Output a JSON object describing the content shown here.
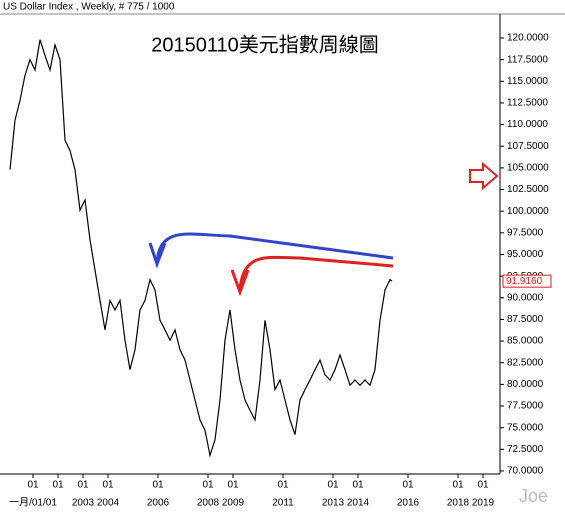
{
  "chart_data": {
    "type": "line",
    "header": "US Dollar Index , Weekly, # 775 / 1000",
    "title": "20150110美元指數周線圖",
    "watermark": "Joe",
    "x": [
      2000.08,
      2000.28,
      2000.48,
      2000.68,
      2000.88,
      2001.08,
      2001.28,
      2001.48,
      2001.68,
      2001.88,
      2002.08,
      2002.28,
      2002.48,
      2002.68,
      2002.88,
      2003.08,
      2003.28,
      2003.48,
      2003.68,
      2003.88,
      2004.08,
      2004.28,
      2004.48,
      2004.68,
      2004.88,
      2005.08,
      2005.28,
      2005.48,
      2005.68,
      2005.88,
      2006.08,
      2006.28,
      2006.48,
      2006.68,
      2006.88,
      2007.08,
      2007.28,
      2007.48,
      2007.68,
      2007.88,
      2008.08,
      2008.28,
      2008.48,
      2008.68,
      2008.88,
      2009.08,
      2009.28,
      2009.48,
      2009.68,
      2009.88,
      2010.08,
      2010.28,
      2010.48,
      2010.68,
      2010.88,
      2011.08,
      2011.28,
      2011.48,
      2011.68,
      2011.88,
      2012.08,
      2012.28,
      2012.48,
      2012.68,
      2012.88,
      2013.08,
      2013.28,
      2013.48,
      2013.68,
      2013.88,
      2014.08,
      2014.28,
      2014.48,
      2014.68,
      2014.88,
      2015.08,
      2015.28,
      2015.36
    ],
    "series": [
      {
        "name": "US Dollar Index",
        "color": "#000000",
        "values": [
          104.8,
          110.5,
          112.8,
          115.7,
          117.5,
          116.3,
          119.8,
          118,
          116.3,
          119.2,
          117.5,
          108.2,
          107,
          104.8,
          100.1,
          101.3,
          96.7,
          93.2,
          89.7,
          86.3,
          89.7,
          88.6,
          89.7,
          85.1,
          81.7,
          84,
          88.6,
          89.7,
          92.1,
          90.9,
          87.4,
          86.3,
          85.1,
          86.3,
          84,
          82.8,
          80.5,
          78.2,
          75.9,
          74.7,
          71.8,
          73.6,
          78.2,
          85.1,
          88.6,
          84,
          80.5,
          78.2,
          77,
          75.9,
          80.5,
          87.4,
          84,
          79.4,
          80.5,
          78.2,
          75.9,
          74.2,
          78.2,
          79.4,
          80.5,
          81.7,
          82.8,
          81.1,
          80.5,
          81.7,
          83.4,
          81.7,
          79.9,
          80.5,
          79.9,
          80.5,
          79.9,
          81.7,
          87.4,
          90.9,
          92.1,
          91.916
        ]
      }
    ],
    "last_price": {
      "value": 91.916,
      "label": "91.9160",
      "color": "#e02020"
    },
    "xlim": [
      1999.68,
      2019.68
    ],
    "ylim": [
      69.65,
      122.77
    ],
    "xticks": [
      {
        "value": 2001,
        "label": "01"
      },
      {
        "value": 2002,
        "label": "01"
      },
      {
        "value": 2003,
        "label": "01"
      },
      {
        "value": 2004,
        "label": "01"
      },
      {
        "value": 2006,
        "label": "01"
      },
      {
        "value": 2008,
        "label": "01"
      },
      {
        "value": 2009,
        "label": "01"
      },
      {
        "value": 2011,
        "label": "01"
      },
      {
        "value": 2013,
        "label": "01"
      },
      {
        "value": 2014,
        "label": "01"
      },
      {
        "value": 2016,
        "label": "01"
      },
      {
        "value": 2018,
        "label": "01"
      },
      {
        "value": 2019,
        "label": "01"
      }
    ],
    "xticks_bottom": [
      {
        "value": 2001,
        "label": "一月/01/01"
      },
      2003,
      2004,
      2006,
      2008,
      2009,
      2011,
      2013,
      2014,
      2016,
      2018,
      2019
    ],
    "yticks": [
      {
        "value": 70,
        "label": "70.0000"
      },
      {
        "value": 72.5,
        "label": "72.5000"
      },
      {
        "value": 75,
        "label": "75.0000"
      },
      {
        "value": 77.5,
        "label": "77.5000"
      },
      {
        "value": 80,
        "label": "80.0000"
      },
      {
        "value": 82.5,
        "label": "82.5000"
      },
      {
        "value": 85,
        "label": "85.0000"
      },
      {
        "value": 87.5,
        "label": "87.5000"
      },
      {
        "value": 90,
        "label": "90.0000"
      },
      {
        "value": 92.5,
        "label": "92.5000"
      },
      {
        "value": 95,
        "label": "95.0000"
      },
      {
        "value": 97.5,
        "label": "97.5000"
      },
      {
        "value": 100,
        "label": "100.0000"
      },
      {
        "value": 102.5,
        "label": "102.5000"
      },
      {
        "value": 105,
        "label": "105.0000"
      },
      {
        "value": 107.5,
        "label": "107.5000"
      },
      {
        "value": 110,
        "label": "110.0000"
      },
      {
        "value": 112.5,
        "label": "112.5000"
      },
      {
        "value": 115,
        "label": "115.0000"
      },
      {
        "value": 117.5,
        "label": "117.5000"
      },
      {
        "value": 120,
        "label": "120.0000"
      }
    ]
  }
}
